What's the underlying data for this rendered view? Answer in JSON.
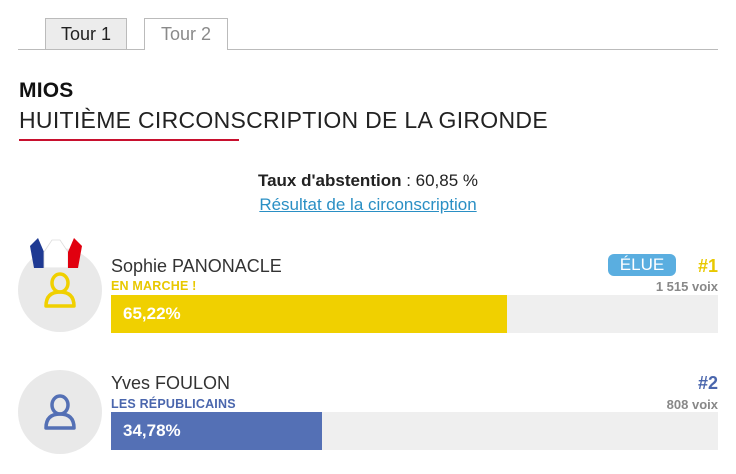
{
  "tabs": [
    {
      "label": "Tour 1"
    },
    {
      "label": "Tour 2"
    }
  ],
  "header": {
    "city": "MIOS",
    "circonscription": "HUITIÈME CIRCONSCRIPTION DE LA GIRONDE"
  },
  "abstention": {
    "label": "Taux d'abstention",
    "value": " : 60,85 %"
  },
  "result_link": "Résultat de la circonscription",
  "candidates": [
    {
      "name": "Sophie PANONACLE",
      "party": "EN MARCHE !",
      "percent_label": "65,22%",
      "percent": 65.22,
      "rank": "#1",
      "votes": "1 515 voix",
      "badge": "ÉLUE",
      "color": "#f0d000",
      "rank_color": "#e8c800"
    },
    {
      "name": "Yves FOULON",
      "party": "LES RÉPUBLICAINS",
      "percent_label": "34,78%",
      "percent": 34.78,
      "rank": "#2",
      "votes": "808 voix",
      "color": "#5470b5",
      "rank_color": "#4a66ad"
    }
  ],
  "icons": [
    "user-icon",
    "french-flag-icon"
  ]
}
